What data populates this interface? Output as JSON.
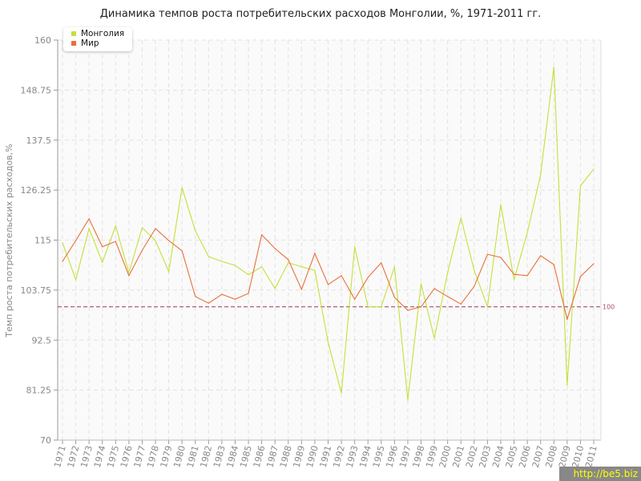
{
  "chart_data": {
    "type": "line",
    "title": "Динамика темпов роста потребительских расходов Монголии, %, 1971-2011 гг.",
    "xlabel": "",
    "ylabel": "Темп роста потребительских расходов,%",
    "ylim": [
      70,
      160
    ],
    "yticks": [
      "70",
      "81.25",
      "92.5",
      "103.75",
      "115",
      "126.25",
      "137.5",
      "148.75",
      "160"
    ],
    "x": [
      1971,
      1972,
      1973,
      1974,
      1975,
      1976,
      1977,
      1978,
      1979,
      1980,
      1981,
      1982,
      1983,
      1984,
      1985,
      1986,
      1987,
      1988,
      1989,
      1990,
      1991,
      1992,
      1993,
      1994,
      1995,
      1996,
      1997,
      1998,
      1999,
      2000,
      2001,
      2002,
      2003,
      2004,
      2005,
      2006,
      2007,
      2008,
      2009,
      2010,
      2011
    ],
    "series": [
      {
        "name": "Монголия",
        "color": "#c5e03a",
        "values": [
          114.4,
          106.1,
          117.6,
          110.0,
          118.2,
          107.7,
          117.8,
          114.9,
          107.9,
          126.8,
          117.1,
          111.3,
          110.2,
          109.3,
          107.2,
          109.0,
          104.1,
          109.9,
          109.0,
          108.2,
          92.0,
          80.6,
          113.5,
          100,
          100,
          109,
          79.0,
          105.2,
          92.9,
          107.7,
          120.0,
          108.2,
          100,
          123.0,
          106.1,
          116.7,
          129.7,
          153.9,
          82.3,
          127.2,
          131.0
        ]
      },
      {
        "name": "Мир",
        "color": "#e8703a",
        "values": [
          110.2,
          114.9,
          119.8,
          113.5,
          114.7,
          107.0,
          112.7,
          117.6,
          114.9,
          112.6,
          102.3,
          100.8,
          102.8,
          101.7,
          103.0,
          116.2,
          113.1,
          110.6,
          103.9,
          112.0,
          105.0,
          107.0,
          101.7,
          106.6,
          109.9,
          102.1,
          99.2,
          100,
          104.1,
          102.3,
          100.6,
          104.6,
          111.8,
          111.1,
          107.3,
          107.0,
          111.5,
          109.5,
          97.2,
          106.8,
          109.7
        ]
      }
    ],
    "reference_line": {
      "value": 100,
      "label": "100",
      "color": "#a05068"
    },
    "grid": true,
    "legend": "top-left"
  },
  "watermark": "http://be5.biz"
}
